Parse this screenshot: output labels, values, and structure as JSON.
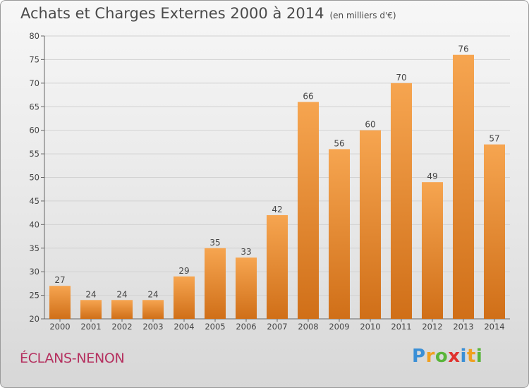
{
  "header": {
    "title": "Achats et Charges Externes 2000 à 2014",
    "subtitle": "(en milliers d'€)"
  },
  "footer": {
    "city": "ÉCLANS-NENON",
    "brand": "Proxiti",
    "brand_letters": [
      {
        "ch": "P",
        "color": "#3a8fd6"
      },
      {
        "ch": "r",
        "color": "#f0a020"
      },
      {
        "ch": "o",
        "color": "#59b53a"
      },
      {
        "ch": "x",
        "color": "#e0322e"
      },
      {
        "ch": "i",
        "color": "#3a8fd6"
      },
      {
        "ch": "t",
        "color": "#f0a020"
      },
      {
        "ch": "i",
        "color": "#59b53a"
      }
    ]
  },
  "chart_data": {
    "type": "bar",
    "categories": [
      "2000",
      "2001",
      "2002",
      "2003",
      "2004",
      "2005",
      "2006",
      "2007",
      "2008",
      "2009",
      "2010",
      "2011",
      "2012",
      "2013",
      "2014"
    ],
    "values": [
      27,
      24,
      24,
      24,
      29,
      35,
      33,
      42,
      66,
      56,
      60,
      70,
      49,
      76,
      57
    ],
    "title": "Achats et Charges Externes 2000 à 2014",
    "ylabel": "",
    "xlabel": "",
    "ylim": [
      20,
      80
    ],
    "yticks": [
      20,
      25,
      30,
      35,
      40,
      45,
      50,
      55,
      60,
      65,
      70,
      75,
      80
    ],
    "grid": true,
    "bar_color_top": "#f6a550",
    "bar_color_bottom": "#d06f18"
  }
}
